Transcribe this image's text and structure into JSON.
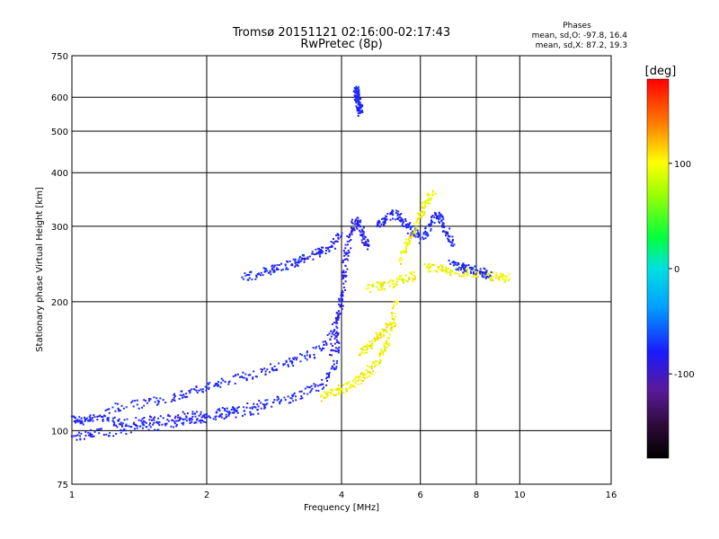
{
  "chart_data": {
    "type": "scatter",
    "title": "Tromsø 20151121 02:16:00-02:17:43",
    "subtitle": "RwPretec (8p)",
    "xlabel": "Frequency [MHz]",
    "ylabel": "Stationary phase Virtual Height [km]",
    "x_scale": "log",
    "y_scale": "log",
    "xlim": [
      1,
      16
    ],
    "ylim": [
      75,
      750
    ],
    "x_ticks": [
      1,
      2,
      4,
      6,
      8,
      10,
      16
    ],
    "x_tick_labels": [
      "1",
      "2",
      "4",
      "6",
      "8",
      "10",
      "16"
    ],
    "y_ticks": [
      75,
      100,
      200,
      300,
      400,
      500,
      600,
      750
    ],
    "y_tick_labels": [
      "75",
      "100",
      "200",
      "300",
      "400",
      "500",
      "600",
      "750"
    ],
    "grid": true,
    "info": {
      "heading": "Phases",
      "line1": "mean, sd,O: -97.8, 16.4",
      "line2": "mean, sd,X:  87.2, 19.3"
    },
    "colorbar": {
      "label": "[deg]",
      "range": [
        -180,
        180
      ],
      "ticks": [
        100,
        0,
        -100
      ],
      "tick_labels": [
        "100",
        "0",
        "-100"
      ]
    },
    "traces": [
      {
        "phase": -100,
        "x": [
          1.0,
          1.05,
          1.1,
          1.2,
          1.3,
          1.45,
          1.6,
          1.8,
          2.0,
          2.3,
          2.7,
          3.0,
          3.3,
          3.6,
          3.85,
          3.95
        ],
        "y": [
          108,
          105,
          107,
          106,
          104,
          105,
          107,
          108,
          109,
          112,
          115,
          118,
          122,
          128,
          140,
          160
        ]
      },
      {
        "phase": -100,
        "x": [
          1.0,
          1.1,
          1.3,
          1.5,
          1.7,
          1.9,
          2.1,
          2.3,
          2.6
        ],
        "y": [
          97,
          98,
          100,
          102,
          104,
          106,
          108,
          110,
          112
        ]
      },
      {
        "phase": -100,
        "x": [
          1.2,
          1.4,
          1.6,
          1.8,
          2.0,
          2.2,
          2.5,
          2.8,
          3.1,
          3.4,
          3.7,
          3.9,
          4.0
        ],
        "y": [
          112,
          115,
          118,
          122,
          126,
          130,
          135,
          140,
          145,
          150,
          160,
          180,
          210
        ]
      },
      {
        "phase": -100,
        "x": [
          2.4,
          2.6,
          2.8,
          3.0,
          3.2,
          3.4,
          3.6,
          3.8,
          4.0
        ],
        "y": [
          228,
          232,
          238,
          243,
          248,
          255,
          262,
          270,
          285
        ]
      },
      {
        "phase": -110,
        "x": [
          3.8,
          3.9,
          4.0,
          4.05,
          4.1,
          4.2,
          4.3,
          4.4,
          4.5,
          4.6
        ],
        "y": [
          150,
          170,
          200,
          230,
          260,
          290,
          310,
          300,
          280,
          270
        ]
      },
      {
        "phase": -100,
        "x": [
          4.8,
          5.0,
          5.2,
          5.4,
          5.6,
          5.8,
          6.0
        ],
        "y": [
          300,
          310,
          320,
          315,
          300,
          290,
          280
        ]
      },
      {
        "phase": -100,
        "x": [
          6.1,
          6.3,
          6.5,
          6.7,
          6.9,
          7.1
        ],
        "y": [
          280,
          300,
          320,
          310,
          290,
          270
        ]
      },
      {
        "phase": -100,
        "x": [
          4.3,
          4.32,
          4.34,
          4.36,
          4.38,
          4.4,
          4.42
        ],
        "y": [
          625,
          615,
          600,
          590,
          575,
          565,
          555
        ]
      },
      {
        "phase": 100,
        "x": [
          3.6,
          3.8,
          4.0,
          4.2,
          4.4,
          4.6,
          4.8,
          5.0,
          5.2,
          5.3
        ],
        "y": [
          120,
          122,
          125,
          128,
          132,
          137,
          145,
          155,
          175,
          200
        ]
      },
      {
        "phase": 100,
        "x": [
          4.4,
          4.6,
          4.8,
          5.0,
          5.2
        ],
        "y": [
          150,
          158,
          165,
          172,
          178
        ]
      },
      {
        "phase": 100,
        "x": [
          4.6,
          4.9,
          5.2,
          5.5,
          5.8
        ],
        "y": [
          215,
          218,
          220,
          225,
          230
        ]
      },
      {
        "phase": 100,
        "x": [
          5.4,
          5.6,
          5.8,
          6.0,
          6.2,
          6.4
        ],
        "y": [
          250,
          270,
          290,
          320,
          340,
          360
        ]
      },
      {
        "phase": 100,
        "x": [
          6.2,
          6.6,
          7.0,
          7.5,
          8.0,
          8.5,
          9.0,
          9.5
        ],
        "y": [
          240,
          238,
          236,
          234,
          232,
          230,
          228,
          226
        ]
      },
      {
        "phase": -100,
        "x": [
          7.0,
          7.4,
          7.8,
          8.2,
          8.6
        ],
        "y": [
          245,
          240,
          238,
          235,
          230
        ]
      }
    ]
  }
}
